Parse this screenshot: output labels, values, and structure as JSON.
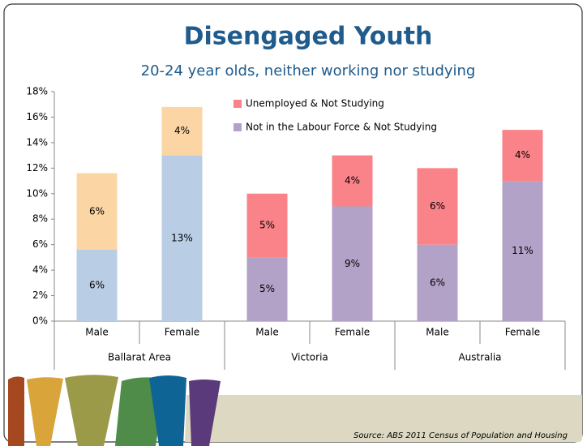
{
  "chart_data": {
    "type": "stacked_bar",
    "title": "Disengaged Youth",
    "subtitle": "20-24 year olds, neither working nor studying",
    "source": "Source: ABS 2011 Census of Population and Housing",
    "categories": [
      "Male",
      "Female",
      "Male",
      "Female",
      "Male",
      "Female"
    ],
    "groups": [
      "Ballarat Area",
      "Victoria",
      "Australia"
    ],
    "series": [
      {
        "name": "Not in the Labour Force & Not Studying",
        "color": "#b3a2c7",
        "colors": [
          "#b9cde5",
          "#b9cde5",
          "#b3a2c7",
          "#b3a2c7",
          "#b3a2c7",
          "#b3a2c7"
        ],
        "values": [
          5.6,
          13,
          5,
          9,
          6,
          11
        ],
        "value_labels": [
          "6%",
          "13%",
          "5%",
          "9%",
          "6%",
          "11%"
        ]
      },
      {
        "name": "Unemployed & Not Studying",
        "color": "#fa8389",
        "colors": [
          "#fcd5a5",
          "#fcd5a5",
          "#fa8389",
          "#fa8389",
          "#fa8389",
          "#fa8389"
        ],
        "values": [
          6,
          3.8,
          5,
          4,
          6,
          4
        ],
        "value_labels": [
          "6%",
          "4%",
          "5%",
          "4%",
          "6%",
          "4%"
        ]
      }
    ],
    "ylim": [
      0,
      18
    ],
    "yticks": [
      {
        "value": 0,
        "label": "0%"
      },
      {
        "value": 2,
        "label": "2%"
      },
      {
        "value": 4,
        "label": "4%"
      },
      {
        "value": 6,
        "label": "6%"
      },
      {
        "value": 8,
        "label": "8%"
      },
      {
        "value": 10,
        "label": "10%"
      },
      {
        "value": 12,
        "label": "12%"
      },
      {
        "value": 14,
        "label": "14%"
      },
      {
        "value": 16,
        "label": "16%"
      },
      {
        "value": 18,
        "label": "18%"
      }
    ],
    "legend": "top"
  }
}
